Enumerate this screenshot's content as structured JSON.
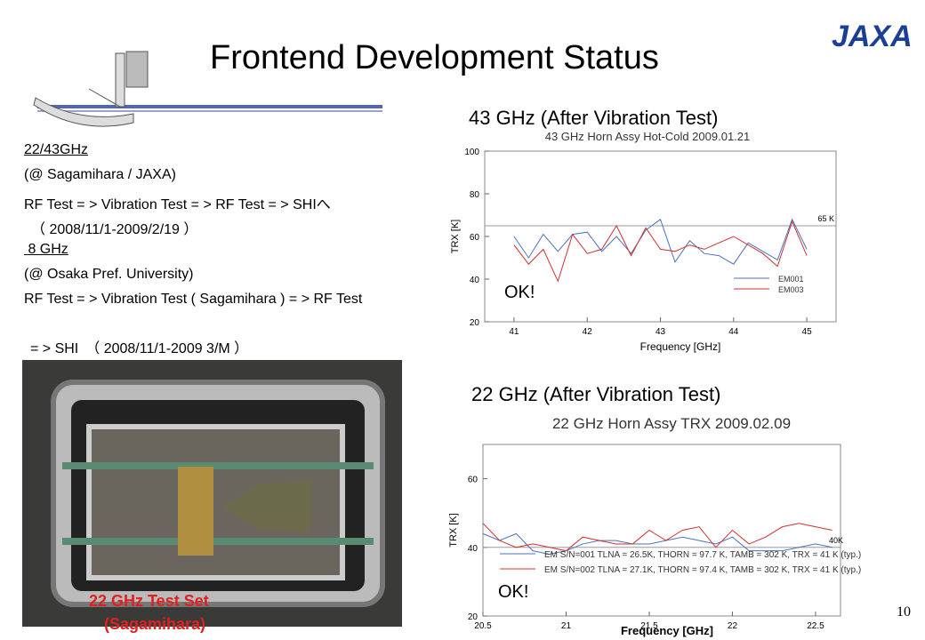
{
  "header": {
    "title": "Frontend Development Status",
    "logo": "JAXA"
  },
  "body": {
    "lines": [
      "22/43GHz",
      "(@ Sagamihara / JAXA)",
      "RF Test = > Vibration Test = > RF Test = > SHIへ",
      "（ 2008/11/1-2009/2/19 ）",
      " 8 GHz",
      "(@ Osaka Pref. University)",
      "RF Test = > Vibration Test ( Sagamihara ) = > RF Test",
      "= > SHI　（ 2008/11/1-2009 3/M ）"
    ]
  },
  "captions": {
    "chart_43": "43 GHz (After Vibration Test)",
    "chart_22": "22 GHz (After Vibration Test)",
    "photo": [
      "22 GHz Test Set",
      "(Sagamihara)"
    ]
  },
  "page_number": "10",
  "chart_data": [
    {
      "type": "line",
      "title": "43 GHz Horn Assy Hot-Cold 2009.01.21",
      "xlabel": "Frequency [GHz]",
      "ylabel": "TRX [K]",
      "annotation": "OK!",
      "x": [
        41,
        41.2,
        41.4,
        41.6,
        41.8,
        42,
        42.2,
        42.4,
        42.6,
        42.8,
        43,
        43.2,
        43.4,
        43.6,
        43.8,
        44,
        44.2,
        44.4,
        44.6,
        44.8,
        45
      ],
      "series": [
        {
          "name": "EM001",
          "color": "#4a72c0",
          "values": [
            60,
            50,
            61,
            53,
            61,
            62,
            53,
            60,
            52,
            63,
            68,
            48,
            58,
            52,
            51,
            47,
            57,
            53,
            49,
            68,
            54
          ]
        },
        {
          "name": "EM003",
          "color": "#d03030",
          "values": [
            56,
            47,
            54,
            39,
            61,
            52,
            54,
            65,
            51,
            64,
            54,
            53,
            56,
            54,
            57,
            60,
            56,
            52,
            46,
            67,
            51
          ]
        }
      ],
      "reference": {
        "value": 65,
        "label": "65 K"
      },
      "xlim": [
        40.6,
        45.4
      ],
      "xticks": [
        41,
        42,
        43,
        44,
        45
      ],
      "ylim": [
        20,
        100
      ],
      "yticks": [
        20,
        40,
        60,
        80,
        100
      ]
    },
    {
      "type": "line",
      "title": "22 GHz Horn Assy TRX 2009.02.09",
      "xlabel": "Frequency [GHz]",
      "ylabel": "TRX [K]",
      "annotation": "OK!",
      "x": [
        20.5,
        20.6,
        20.7,
        20.8,
        20.9,
        21,
        21.1,
        21.2,
        21.3,
        21.4,
        21.5,
        21.6,
        21.7,
        21.8,
        21.9,
        22,
        22.1,
        22.2,
        22.3,
        22.4,
        22.5,
        22.6
      ],
      "series": [
        {
          "name": "EM S/N=001 TLNA = 26.5K, THORN = 97.7 K, TAMB = 302 K, TRX = 41 K (typ.)",
          "color": "#4a72c0",
          "values": [
            44,
            42,
            44,
            39,
            38,
            39,
            41,
            42,
            42,
            41,
            41,
            42,
            43,
            42,
            41,
            43,
            39,
            39,
            39,
            40,
            41,
            40
          ]
        },
        {
          "name": "EM S/N=002 TLNA = 27.1K, THORN = 97.4 K, TAMB = 302 K, TRX = 41 K (typ.)",
          "color": "#d03030",
          "values": [
            47,
            42,
            40,
            41,
            40,
            39,
            43,
            42,
            41,
            41,
            45,
            42,
            45,
            46,
            40,
            45,
            41,
            43,
            46,
            47,
            46,
            45
          ]
        }
      ],
      "reference": {
        "value": 40,
        "label": "40K"
      },
      "xlim": [
        20.5,
        22.65
      ],
      "xticks": [
        20.5,
        21,
        21.5,
        22,
        22.5
      ],
      "ylim": [
        20,
        70
      ],
      "yticks": [
        20,
        40,
        60
      ]
    }
  ]
}
